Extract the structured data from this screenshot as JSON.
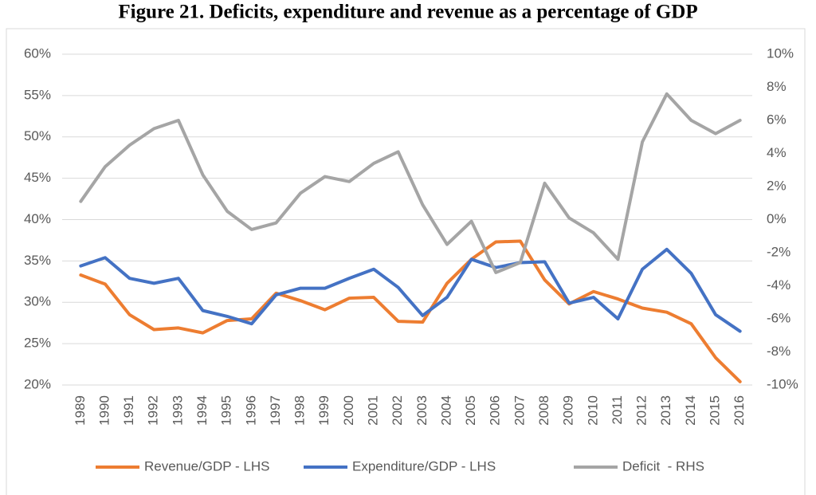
{
  "chart_data": {
    "type": "line",
    "title": "Figure 21. Deficits, expenditure and revenue as a percentage of GDP",
    "categories": [
      "1989",
      "1990",
      "1991",
      "1992",
      "1993",
      "1994",
      "1995",
      "1996",
      "1997",
      "1998",
      "1999",
      "2000",
      "2001",
      "2002",
      "2003",
      "2004",
      "2005",
      "2006",
      "2007",
      "2008",
      "2009",
      "2010",
      "2011",
      "2012",
      "2013",
      "2014",
      "2015",
      "2016"
    ],
    "series": [
      {
        "name": "Revenue/GDP - LHS",
        "color": "#ED7D31",
        "values": [
          33.3,
          32.2,
          28.5,
          26.7,
          26.9,
          26.3,
          27.8,
          28.0,
          31.1,
          30.2,
          29.1,
          30.5,
          30.6,
          27.7,
          27.6,
          32.3,
          35.2,
          37.3,
          37.4,
          32.7,
          29.8,
          31.3,
          30.4,
          29.3,
          28.8,
          27.4,
          23.3,
          20.4
        ]
      },
      {
        "name": "Expenditure/GDP - LHS",
        "color": "#4472C4",
        "values": [
          34.4,
          35.4,
          32.9,
          32.3,
          32.9,
          29.0,
          28.3,
          27.4,
          30.9,
          31.7,
          31.7,
          32.9,
          34.0,
          31.8,
          28.4,
          30.6,
          35.2,
          34.2,
          34.8,
          34.9,
          29.9,
          30.6,
          28.0,
          34.0,
          36.4,
          33.5,
          28.5,
          26.5
        ]
      },
      {
        "name": "Deficit  - RHS",
        "color": "#A5A5A5",
        "axis": "y2",
        "values": [
          1.1,
          3.2,
          4.5,
          5.5,
          6.0,
          2.7,
          0.5,
          -0.6,
          -0.2,
          1.6,
          2.6,
          2.3,
          3.4,
          4.1,
          0.9,
          -1.5,
          -0.1,
          -3.2,
          -2.6,
          2.2,
          0.1,
          -0.8,
          -2.4,
          4.7,
          7.6,
          6.0,
          5.2,
          6.0
        ]
      }
    ],
    "ylim": [
      20,
      60
    ],
    "yticks": [
      {
        "value": 20,
        "label": "20%"
      },
      {
        "value": 25,
        "label": "25%"
      },
      {
        "value": 30,
        "label": "30%"
      },
      {
        "value": 35,
        "label": "35%"
      },
      {
        "value": 40,
        "label": "40%"
      },
      {
        "value": 45,
        "label": "45%"
      },
      {
        "value": 50,
        "label": "50%"
      },
      {
        "value": 55,
        "label": "55%"
      },
      {
        "value": 60,
        "label": "60%"
      }
    ],
    "y2lim": [
      -10,
      10
    ],
    "y2ticks": [
      {
        "value": -10,
        "label": "-10%"
      },
      {
        "value": -8,
        "label": "-8%"
      },
      {
        "value": -6,
        "label": "-6%"
      },
      {
        "value": -4,
        "label": "-4%"
      },
      {
        "value": -2,
        "label": "-2%"
      },
      {
        "value": 0,
        "label": "0%"
      },
      {
        "value": 2,
        "label": "2%"
      },
      {
        "value": 4,
        "label": "4%"
      },
      {
        "value": 6,
        "label": "6%"
      },
      {
        "value": 8,
        "label": "8%"
      },
      {
        "value": 10,
        "label": "10%"
      }
    ],
    "grid": true
  }
}
